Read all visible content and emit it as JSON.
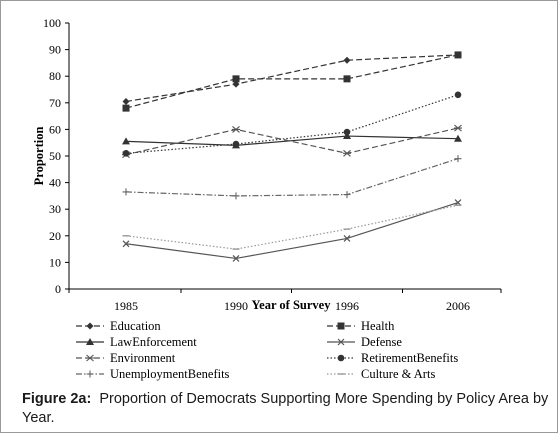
{
  "chart_data": {
    "type": "line",
    "title": "",
    "xlabel": "Year of Survey",
    "ylabel": "Proportion",
    "categories": [
      "1985",
      "1990",
      "1996",
      "2006"
    ],
    "ylim": [
      0,
      100
    ],
    "yticks": [
      "0",
      "10",
      "20",
      "30",
      "40",
      "50",
      "60",
      "70",
      "80",
      "90",
      "100"
    ],
    "grid": false,
    "legend_position": "bottom",
    "series": [
      {
        "name": "Education",
        "values": [
          70.5,
          77,
          86,
          88
        ],
        "marker": "diamond",
        "dash": "dashed",
        "color": "#333333"
      },
      {
        "name": "Health",
        "values": [
          68,
          79,
          79,
          88
        ],
        "marker": "square",
        "dash": "dashed",
        "color": "#333333"
      },
      {
        "name": "LawEnforcement",
        "values": [
          55.5,
          54,
          57.5,
          56.5
        ],
        "marker": "triangle",
        "dash": "solid",
        "color": "#333333"
      },
      {
        "name": "Defense",
        "values": [
          17,
          11.5,
          19,
          32.5
        ],
        "marker": "x",
        "dash": "solid",
        "color": "#555555"
      },
      {
        "name": "Environment",
        "values": [
          50.5,
          60,
          51,
          60.5
        ],
        "marker": "star",
        "dash": "dashed",
        "color": "#555555"
      },
      {
        "name": "RetirementBenefits",
        "values": [
          51,
          54.5,
          59,
          73
        ],
        "marker": "circle",
        "dash": "dotted",
        "color": "#333333"
      },
      {
        "name": "UnemploymentBenefits",
        "values": [
          36.5,
          35,
          35.5,
          49
        ],
        "marker": "plus",
        "dash": "dashdot",
        "color": "#666666"
      },
      {
        "name": "Culture & Arts",
        "values": [
          20,
          15,
          22.5,
          31.5
        ],
        "marker": "dash",
        "dash": "dotted",
        "color": "#999999"
      }
    ]
  },
  "caption": {
    "label": "Figure 2a:",
    "text": "Proportion of Democrats Supporting More Spending by Policy Area by Year."
  }
}
